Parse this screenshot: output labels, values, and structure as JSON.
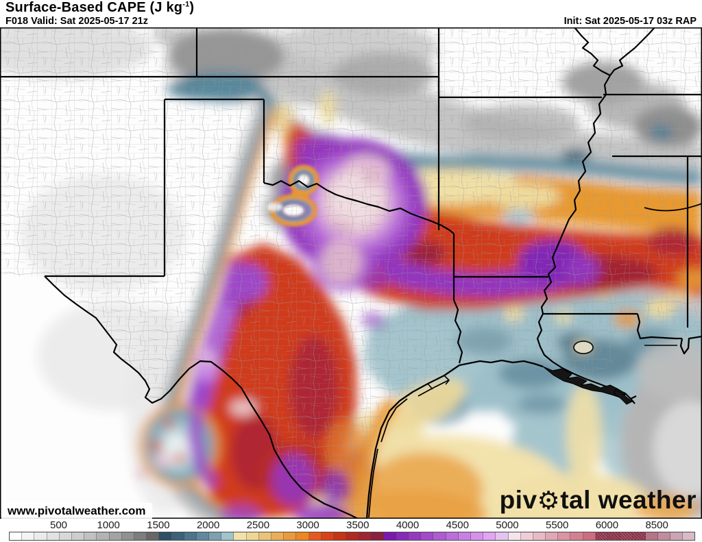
{
  "header": {
    "title_base": "Surface-Based CAPE (J kg",
    "title_sup": "-1",
    "title_end": ")",
    "forecast_label": "F018 Valid: Sat 2025-05-17 21z",
    "init_label": "Init: Sat 2025-05-17 03z RAP"
  },
  "map": {
    "watermark": "www.pivotalweather.com",
    "logo": {
      "pre": "piv",
      "gear_icon": "⚙",
      "post": "tal weather"
    },
    "palette": {
      "low_gray": "#c4c4c4",
      "marine_teal": "#9dbfc9",
      "band_teal": "#54859a",
      "moderate_yellow": "#f1e0a6",
      "moderate_orange": "#e9992f",
      "high_red": "#d03a1c",
      "very_high_crimson": "#a32433",
      "extreme_purple": "#9336bf",
      "max_pink": "#f0dde2"
    }
  },
  "colorbar": {
    "ticks": [
      "500",
      "1000",
      "1500",
      "2000",
      "2500",
      "3000",
      "3500",
      "4000",
      "4500",
      "5000",
      "5500",
      "6000",
      "8500"
    ],
    "cells": [
      "#ffffff",
      "#f4f4f4",
      "#ebebeb",
      "#e2e2e2",
      "#d8d8d8",
      "#cdcdcd",
      "#c1c1c1",
      "#b3b3b3",
      "#a3a3a3",
      "#919191",
      "#7d7d7d",
      "#676767",
      "#2f5063",
      "#3d6176",
      "#4d748c",
      "#61899e",
      "#7da1b0",
      "#a2c3cc",
      "#f2e2aa",
      "#eed793",
      "#ebc377",
      "#eaae58",
      "#ea9a3c",
      "#ec8722",
      "#e55a20",
      "#d74316",
      "#c53414",
      "#b02a20",
      "#9e2530",
      "#8a1f40",
      "#7b17ad",
      "#8829b7",
      "#953ac0",
      "#a24bc9",
      "#af5cd2",
      "#bc6eda",
      "#c980e3",
      "#d592eb",
      "#e1a5f2",
      "#e4c4ee",
      "#f5e4e9",
      "#efcdd6",
      "#e8bac5",
      "#e1a7b4",
      "#da94a3",
      "#d38191",
      "#cc6e80",
      "#aa4e64",
      "#a54a60",
      "#ad5166",
      "#a84c62",
      "#b37687",
      "#bf8d9d",
      "#cba4b3",
      "#d7bbc8"
    ],
    "hatched_indexes": [
      47,
      48,
      49,
      50
    ]
  }
}
